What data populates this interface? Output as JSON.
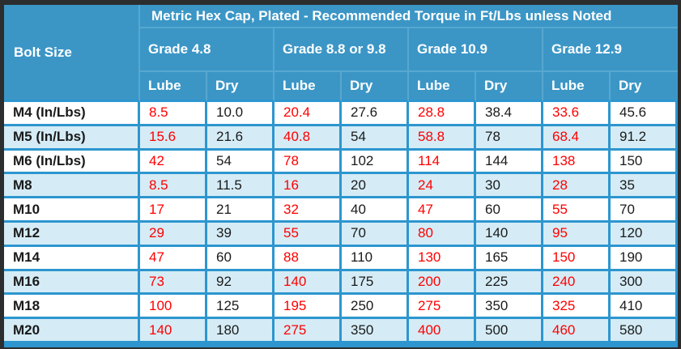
{
  "colors": {
    "header_bg": "#3b96c6",
    "header_divider": "#57a7d0",
    "cell_border": "#2d96cf",
    "row_bg": "#ffffff",
    "row_alt_bg": "#d5ecf6",
    "lube_value_color": "#ff0000",
    "dry_value_color": "#1a1a1a",
    "frame_color": "#2b2d2e",
    "header_text_color": "#ffffff"
  },
  "chart_data": {
    "type": "table",
    "title": "Metric Hex Cap, Plated - Recommended Torque in Ft/Lbs unless Noted",
    "bolt_size_header": "Bolt Size",
    "grade_headers": [
      "Grade 4.8",
      "Grade 8.8 or 9.8",
      "Grade 10.9",
      "Grade 12.9"
    ],
    "sub_headers": [
      "Lube",
      "Dry",
      "Lube",
      "Dry",
      "Lube",
      "Dry",
      "Lube",
      "Dry"
    ],
    "rows": [
      {
        "bolt": "M4 (In/Lbs)",
        "values": [
          "8.5",
          "10.0",
          "20.4",
          "27.6",
          "28.8",
          "38.4",
          "33.6",
          "45.6"
        ]
      },
      {
        "bolt": "M5 (In/Lbs)",
        "values": [
          "15.6",
          "21.6",
          "40.8",
          "54",
          "58.8",
          "78",
          "68.4",
          "91.2"
        ]
      },
      {
        "bolt": "M6 (In/Lbs)",
        "values": [
          "42",
          "54",
          "78",
          "102",
          "114",
          "144",
          "138",
          "150"
        ]
      },
      {
        "bolt": "M8",
        "values": [
          "8.5",
          "11.5",
          "16",
          "20",
          "24",
          "30",
          "28",
          "35"
        ]
      },
      {
        "bolt": "M10",
        "values": [
          "17",
          "21",
          "32",
          "40",
          "47",
          "60",
          "55",
          "70"
        ]
      },
      {
        "bolt": "M12",
        "values": [
          "29",
          "39",
          "55",
          "70",
          "80",
          "140",
          "95",
          "120"
        ]
      },
      {
        "bolt": "M14",
        "values": [
          "47",
          "60",
          "88",
          "110",
          "130",
          "165",
          "150",
          "190"
        ]
      },
      {
        "bolt": "M16",
        "values": [
          "73",
          "92",
          "140",
          "175",
          "200",
          "225",
          "240",
          "300"
        ]
      },
      {
        "bolt": "M18",
        "values": [
          "100",
          "125",
          "195",
          "250",
          "275",
          "350",
          "325",
          "410"
        ]
      },
      {
        "bolt": "M20",
        "values": [
          "140",
          "180",
          "275",
          "350",
          "400",
          "500",
          "460",
          "580"
        ]
      }
    ]
  }
}
